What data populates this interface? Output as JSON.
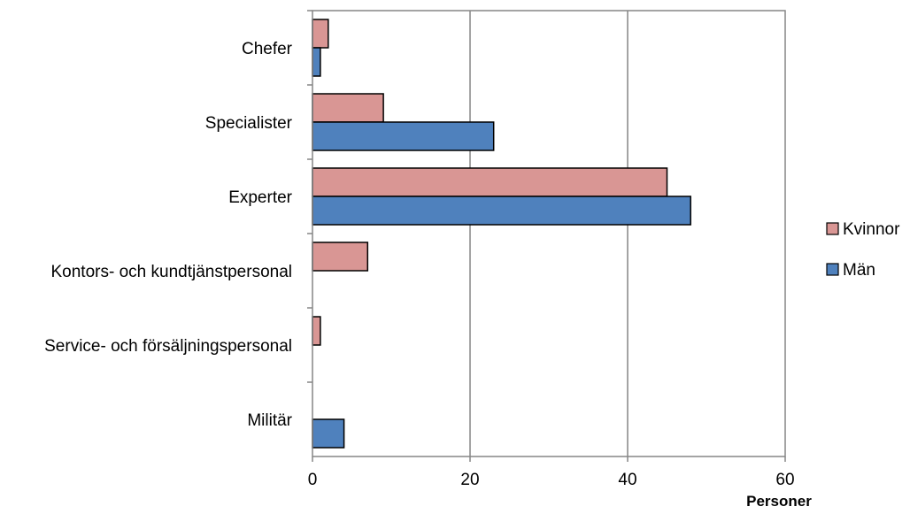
{
  "chart_data": {
    "type": "bar",
    "orientation": "horizontal",
    "categories": [
      "Chefer",
      "Specialister",
      "Experter",
      "Kontors- och kundtjänstpersonal",
      "Service- och försäljningspersonal",
      "Militär"
    ],
    "series": [
      {
        "name": "Kvinnor",
        "color": "#d99694",
        "values": [
          2,
          9,
          45,
          7,
          1,
          0
        ]
      },
      {
        "name": "Män",
        "color": "#4f81bd",
        "values": [
          1,
          23,
          48,
          0,
          0,
          4
        ]
      }
    ],
    "xlabel": "Personer",
    "ylabel": "",
    "xlim": [
      0,
      60
    ],
    "xticks": [
      0,
      20,
      40,
      60
    ],
    "grid": true,
    "legend_position": "right"
  }
}
